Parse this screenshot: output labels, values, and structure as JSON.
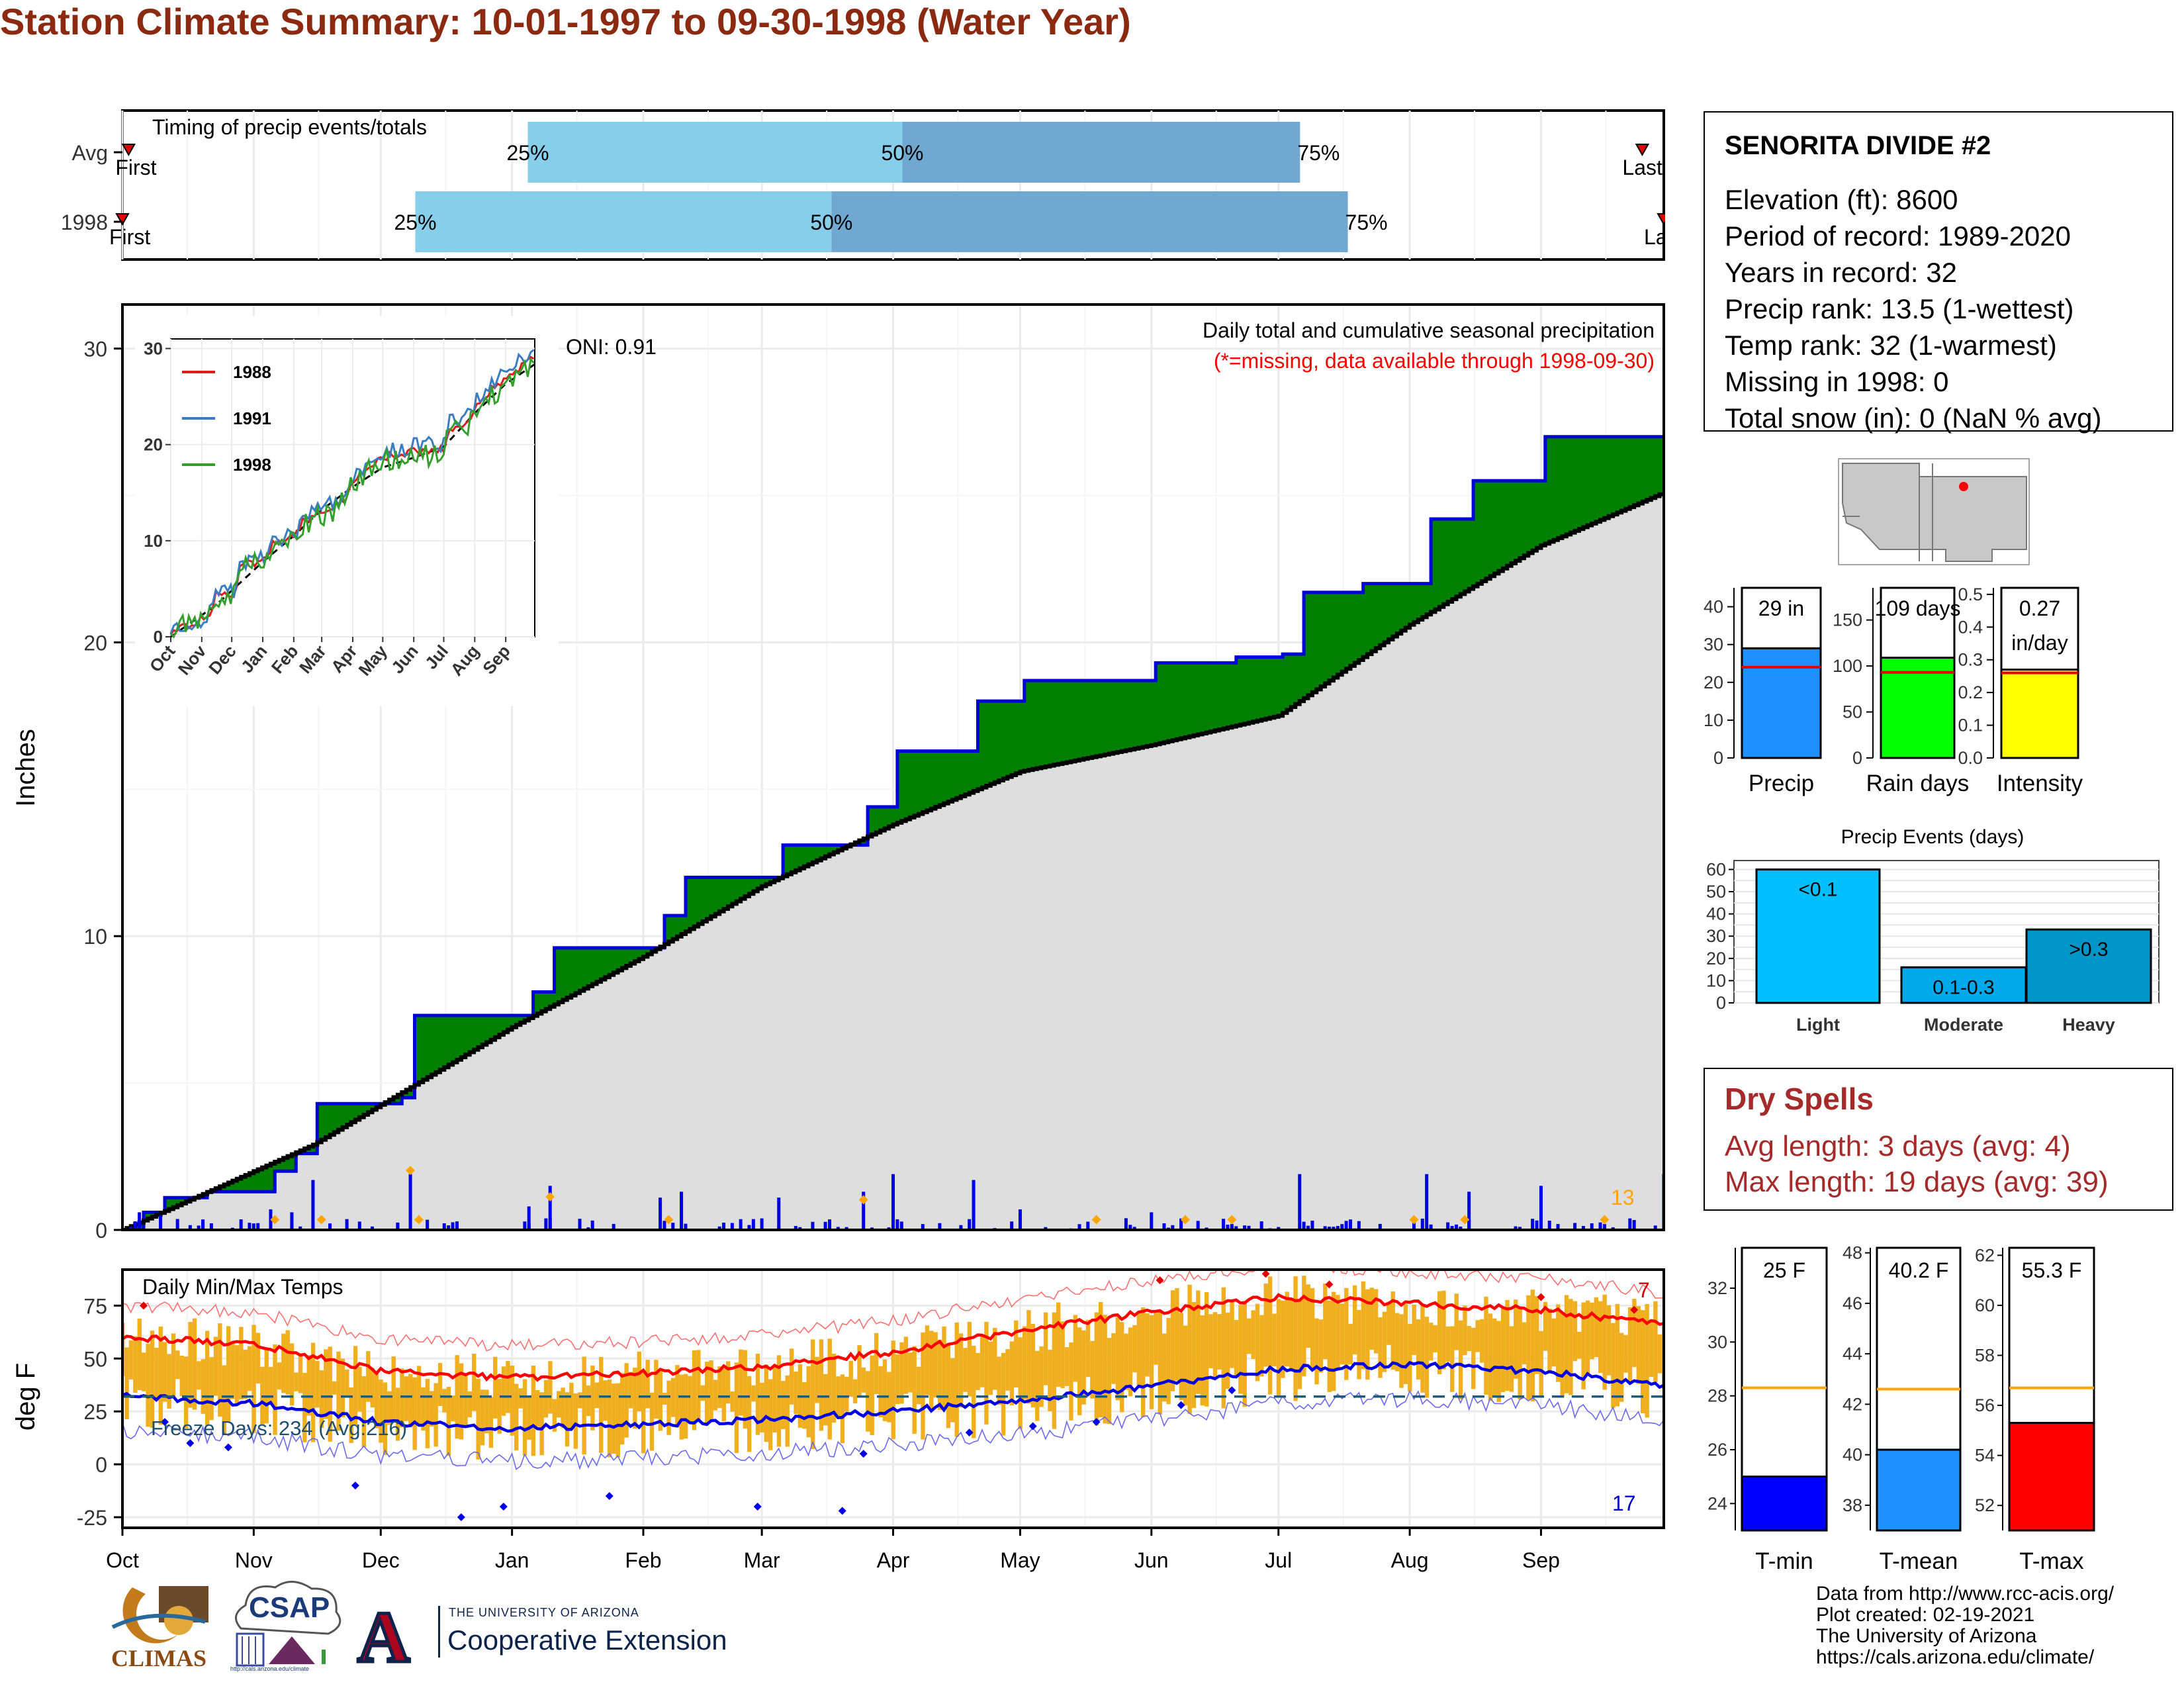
{
  "title": "Station Climate Summary: 10-01-1997 to 09-30-1998 (Water Year)",
  "timing_panel": {
    "label": "Timing of precip events/totals",
    "rows": [
      {
        "name": "Avg",
        "first_label": "First",
        "last_label": "Last",
        "p25": 0.263,
        "p50": 0.506,
        "p75": 0.764,
        "first": 0.004,
        "last": 0.986
      },
      {
        "name": "1998",
        "first_label": "First",
        "last_label": "Last",
        "p25": 0.19,
        "p50": 0.46,
        "p75": 0.795,
        "first": 0.0,
        "last": 1.0
      }
    ],
    "pct_labels": [
      "25%",
      "50%",
      "75%"
    ]
  },
  "precip_panel": {
    "ylabel": "Inches",
    "title_right": "Daily total and cumulative seasonal precipitation",
    "missing_note": "(*=missing, data available through 1998-09-30)",
    "oni": "ONI: 0.91",
    "count_label": "13",
    "ytick_labels": [
      "0",
      "10",
      "20",
      "30"
    ]
  },
  "temp_panel": {
    "label": "Daily Min/Max Temps",
    "ylabel": "deg F",
    "freeze_label": "Freeze Days: 234 (Avg:216)",
    "max_count": "7",
    "min_count": "17",
    "ytick_labels": [
      "-25",
      "0",
      "25",
      "50",
      "75"
    ]
  },
  "month_labels": [
    "Oct",
    "Nov",
    "Dec",
    "Jan",
    "Feb",
    "Mar",
    "Apr",
    "May",
    "Jun",
    "Jul",
    "Aug",
    "Sep"
  ],
  "inset": {
    "legend": [
      {
        "label": "1988",
        "color": "#e31a1c"
      },
      {
        "label": "1991",
        "color": "#3a7dc2"
      },
      {
        "label": "1998",
        "color": "#33a02c"
      }
    ],
    "ytick_labels": [
      "0",
      "10",
      "20",
      "30"
    ],
    "xtick_labels": [
      "Oct",
      "Nov",
      "Dec",
      "Jan",
      "Feb",
      "Mar",
      "Apr",
      "May",
      "Jun",
      "Jul",
      "Aug",
      "Sep"
    ]
  },
  "station": {
    "name": "SENORITA DIVIDE #2",
    "lines": [
      "Elevation (ft): 8600",
      "Period of record: 1989-2020",
      "Years in record: 32",
      "Precip rank: 13.5 (1-wettest)",
      "Temp rank: 32 (1-warmest)",
      "Missing in 1998: 0",
      "Total snow (in): 0 (NaN % avg)"
    ]
  },
  "summary_bars": [
    {
      "name": "Precip",
      "value_label": "29 in",
      "value": 29,
      "avg": 24,
      "ymax": 45,
      "ticks": [
        "0",
        "10",
        "20",
        "30",
        "40"
      ],
      "color": "#1e90ff"
    },
    {
      "name": "Rain days",
      "value_label": "109 days",
      "value": 109,
      "avg": 93,
      "ymax": 185,
      "ticks": [
        "0",
        "50",
        "100",
        "150"
      ],
      "color": "#00ff00"
    },
    {
      "name": "Intensity",
      "value_label": "0.27 in/day",
      "value": 0.27,
      "avg": 0.26,
      "ymax": 0.52,
      "ticks": [
        "0.0",
        "0.1",
        "0.2",
        "0.3",
        "0.4",
        "0.5"
      ],
      "color": "#ffff00"
    }
  ],
  "events": {
    "title": "Precip Events (days)",
    "bars": [
      {
        "name": "Light",
        "label": "<0.1",
        "value": 60,
        "color": "#00bfff"
      },
      {
        "name": "Moderate",
        "label": "0.1-0.3",
        "value": 16,
        "color": "#00a8ec"
      },
      {
        "name": "Heavy",
        "label": ">0.3",
        "value": 33,
        "color": "#0095c8"
      }
    ],
    "ticks": [
      "0",
      "10",
      "20",
      "30",
      "40",
      "50",
      "60"
    ]
  },
  "dry_spells": {
    "title": "Dry Spells",
    "lines": [
      "Avg length: 3 days (avg: 4)",
      "Max length: 19 days (avg: 39)"
    ]
  },
  "temp_bars": [
    {
      "name": "T-min",
      "value_label": "25 F",
      "value": 25,
      "avg": 28.3,
      "ticks": [
        "24",
        "26",
        "28",
        "30",
        "32"
      ],
      "ymin": 23,
      "ymax": 33.5,
      "color": "#0000ff"
    },
    {
      "name": "T-mean",
      "value_label": "40.2 F",
      "value": 40.2,
      "avg": 42.6,
      "ticks": [
        "38",
        "40",
        "42",
        "44",
        "46",
        "48"
      ],
      "ymin": 37,
      "ymax": 48.2,
      "color": "#1e90ff"
    },
    {
      "name": "T-max",
      "value_label": "55.3 F",
      "value": 55.3,
      "avg": 56.7,
      "ticks": [
        "52",
        "54",
        "56",
        "58",
        "60",
        "62"
      ],
      "ymin": 51,
      "ymax": 62.3,
      "color": "#ff0000"
    }
  ],
  "credits": [
    "Data from http://www.rcc-acis.org/",
    "Plot created: 02-19-2021",
    "The University of Arizona",
    "https://cals.arizona.edu/climate/"
  ],
  "logos": {
    "climas": "CLIMAS",
    "csap": "CSAP",
    "csap_url": "http://cals.arizona.edu/climate",
    "ua_line1": "THE UNIVERSITY OF ARIZONA",
    "ua_line2": "Cooperative Extension",
    "ua_mark": "A"
  },
  "chart_data": {
    "type": "area",
    "title": "Station Climate Summary: 10-01-1997 to 09-30-1998 (Water Year)",
    "ylabel": "Inches",
    "ylim": [
      0,
      31.5
    ],
    "xlim": [
      "1997-10-01",
      "1998-09-30"
    ],
    "series": [
      {
        "name": "1998 cumulative",
        "x": [
          "1997-10-01",
          "1997-10-05",
          "1997-10-10",
          "1997-10-20",
          "1997-11-05",
          "1997-11-10",
          "1997-11-15",
          "1997-12-05",
          "1997-12-08",
          "1998-01-05",
          "1998-01-10",
          "1998-02-05",
          "1998-02-10",
          "1998-03-05",
          "1998-03-25",
          "1998-04-01",
          "1998-04-20",
          "1998-05-01",
          "1998-06-01",
          "1998-06-20",
          "1998-07-01",
          "1998-07-06",
          "1998-07-20",
          "1998-08-05",
          "1998-08-15",
          "1998-09-01",
          "1998-09-30"
        ],
        "values": [
          0.0,
          0.6,
          1.1,
          1.3,
          2.0,
          2.6,
          4.3,
          4.5,
          7.3,
          8.1,
          9.6,
          10.7,
          12.0,
          13.1,
          14.4,
          16.3,
          18.0,
          18.7,
          19.3,
          19.5,
          19.6,
          21.7,
          22.0,
          24.2,
          25.5,
          27.0,
          29.0
        ]
      },
      {
        "name": "Avg cumulative",
        "x": [
          "1997-10-01",
          "1997-11-15",
          "1998-01-01",
          "1998-02-01",
          "1998-03-01",
          "1998-04-01",
          "1998-05-01",
          "1998-06-01",
          "1998-07-01",
          "1998-08-01",
          "1998-09-01",
          "1998-09-30"
        ],
        "values": [
          0.0,
          2.9,
          6.9,
          9.3,
          11.7,
          13.8,
          15.6,
          16.5,
          17.5,
          20.6,
          23.3,
          25.1
        ]
      }
    ],
    "daily_precip_markers": [
      {
        "date": "1997-12-08",
        "value": 1.8
      },
      {
        "date": "1998-01-10",
        "value": 0.9
      },
      {
        "date": "1998-03-25",
        "value": 0.8
      }
    ],
    "temperature": {
      "ylabel": "deg F",
      "ylim": [
        -30,
        92
      ],
      "avg_max": {
        "x": [
          "1997-10-01",
          "1997-11-01",
          "1997-12-01",
          "1998-01-01",
          "1998-02-01",
          "1998-03-01",
          "1998-04-01",
          "1998-05-01",
          "1998-06-01",
          "1998-07-01",
          "1998-08-01",
          "1998-09-01",
          "1998-09-30"
        ],
        "values": [
          60,
          57,
          44,
          41,
          43,
          46,
          53,
          63,
          72,
          79,
          76,
          73,
          66
        ]
      },
      "avg_min": {
        "x": [
          "1997-10-01",
          "1997-11-01",
          "1997-12-01",
          "1998-01-01",
          "1998-02-01",
          "1998-03-01",
          "1998-04-01",
          "1998-05-01",
          "1998-06-01",
          "1998-07-01",
          "1998-08-01",
          "1998-09-01",
          "1998-09-30"
        ],
        "values": [
          32,
          29,
          20,
          17,
          19,
          21,
          25,
          30,
          37,
          45,
          47,
          44,
          37
        ]
      },
      "freeze_line": 32
    }
  }
}
